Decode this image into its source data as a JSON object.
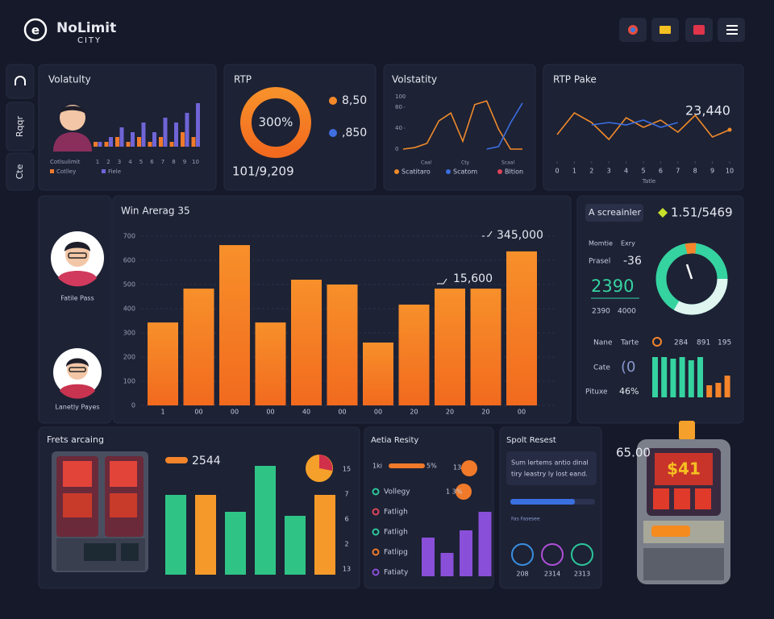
{
  "header": {
    "brand": "NoLimit",
    "tagline": "CITY"
  },
  "sidebar": {
    "items": [
      "Rqqr",
      "Cte"
    ]
  },
  "volatility": {
    "type": "bar",
    "title": "Volatulty",
    "axis_title": "Cotlsulimit",
    "categories": [
      "1",
      "2",
      "3",
      "4",
      "5",
      "6",
      "7",
      "8",
      "9",
      "10"
    ],
    "series": [
      {
        "name": "Cotlley",
        "color": "#f07a2a",
        "values": [
          1,
          1,
          2,
          1,
          2,
          1,
          2,
          1,
          3,
          2
        ]
      },
      {
        "name": "Fiele",
        "color": "#7064d6",
        "values": [
          1,
          2,
          4,
          3,
          5,
          3,
          6,
          5,
          7,
          9
        ]
      }
    ]
  },
  "rtp": {
    "title": "RTP",
    "center": "300%",
    "legend": [
      {
        "label": "8,50",
        "color": "#f5892a"
      },
      {
        "label": ",850",
        "color": "#3f6fe0"
      }
    ],
    "footer": "101/9,209"
  },
  "volatility_lines": {
    "type": "line",
    "title": "Volstatity",
    "ylim": [
      0,
      100
    ],
    "yticks": [
      0,
      40,
      80,
      100
    ],
    "x_labels": [
      "Caal",
      "Cty",
      "Scaal"
    ],
    "series": [
      {
        "color": "#f08a2a",
        "values": [
          0,
          3,
          11,
          54,
          69,
          15,
          85,
          92,
          38,
          0,
          0
        ]
      },
      {
        "color": "#3a6fe0",
        "values": [
          null,
          null,
          null,
          null,
          null,
          null,
          null,
          0,
          5,
          50,
          88
        ]
      }
    ],
    "legend": [
      {
        "name": "Scatitaro",
        "color": "#f08a2a"
      },
      {
        "name": "Scatom",
        "color": "#3a6fe0"
      },
      {
        "name": "Bltion",
        "color": "#e0445a"
      }
    ]
  },
  "rtp_peak": {
    "type": "line",
    "title": "RTP Pake",
    "annotation": "23,440",
    "x_label": "Tatle",
    "xlim": [
      0,
      10
    ],
    "xticks": [
      0,
      1,
      2,
      3,
      4,
      5,
      6,
      7,
      8,
      9,
      10
    ],
    "ylim": [
      0,
      100
    ],
    "series": [
      {
        "color": "#f08a2a",
        "x": [
          0,
          1,
          2,
          3,
          4,
          5,
          6,
          7,
          8,
          9,
          10
        ],
        "values": [
          30,
          75,
          55,
          20,
          65,
          45,
          60,
          35,
          70,
          25,
          40
        ]
      },
      {
        "color": "#3a6fe0",
        "x": [
          2,
          3,
          4,
          5,
          6,
          7
        ],
        "values": [
          50,
          55,
          50,
          60,
          45,
          55
        ]
      }
    ]
  },
  "players": {
    "items": [
      "Fatile Pass",
      "Lanetly Payes"
    ]
  },
  "win_average": {
    "type": "bar",
    "title": "Win Arerag 35",
    "color": "#f5842a",
    "categories": [
      "1",
      "00",
      "00",
      "00",
      "40",
      "00",
      "00",
      "20",
      "20",
      "20",
      "00"
    ],
    "values": [
      343,
      483,
      663,
      343,
      520,
      500,
      260,
      417,
      483,
      483,
      637
    ],
    "ylim": [
      0,
      700
    ],
    "yticks": [
      0,
      100,
      200,
      300,
      400,
      500,
      600,
      700
    ],
    "grid": true,
    "annotations": [
      "345,000",
      "15,600"
    ]
  },
  "summary": {
    "button": "A screainler",
    "headline": "1.51/5469",
    "col_labels": [
      "Momtie",
      "Exry"
    ],
    "delta_label": "Prasel",
    "delta": "-36",
    "big": "2390",
    "sub": [
      "2390",
      "4000"
    ],
    "rows": [
      {
        "label": "Nane",
        "cells": [
          "Tarte",
          "284",
          "891",
          "195"
        ]
      },
      {
        "label": "Cate",
        "cells": [
          "(0"
        ]
      },
      {
        "label": "Pituxe",
        "cells": [
          "46%"
        ]
      }
    ],
    "mini_bars": {
      "values": [
        50,
        50,
        48,
        50,
        46,
        50,
        15,
        18,
        27
      ],
      "colors": [
        "#35d3a0",
        "#35d3a0",
        "#35d3a0",
        "#35d3a0",
        "#35d3a0",
        "#35d3a0",
        "#f5842a",
        "#f5842a",
        "#f5842a"
      ]
    }
  },
  "free_spins": {
    "type": "bar",
    "title": "Frets arcaing",
    "value": "2544",
    "values": [
      99,
      99,
      78,
      135,
      73,
      99
    ],
    "colors": [
      "#2fc486",
      "#f59a2a",
      "#2fc486",
      "#2fc486",
      "#2fc486",
      "#f59a2a"
    ],
    "axis_labels": [
      "15",
      "7",
      "6",
      "2",
      "13"
    ]
  },
  "activity": {
    "title": "Aetia Resity",
    "top": [
      "1ki",
      "5%",
      "13",
      "1 3%"
    ],
    "list": [
      {
        "label": "Vollegy",
        "color": "#2bc79a"
      },
      {
        "label": "Fatligh",
        "color": "#e0445a"
      },
      {
        "label": "Fatligh",
        "color": "#2bc79a"
      },
      {
        "label": "Fatlipg",
        "color": "#f07a2a"
      },
      {
        "label": "Fatiaty",
        "color": "#8a4fd8"
      }
    ],
    "values": [
      48,
      29,
      57,
      80
    ],
    "color": "#8a4fd8"
  },
  "sports": {
    "title": "Spolt Resest",
    "text": [
      "Sum lertems antio dinal",
      "tiry leastry ly lost eand."
    ],
    "bar_label": "Fas Fasesee",
    "stats": [
      "208",
      "2314",
      "2313"
    ]
  },
  "jackpot": {
    "value": "65.00",
    "display": "$41"
  }
}
